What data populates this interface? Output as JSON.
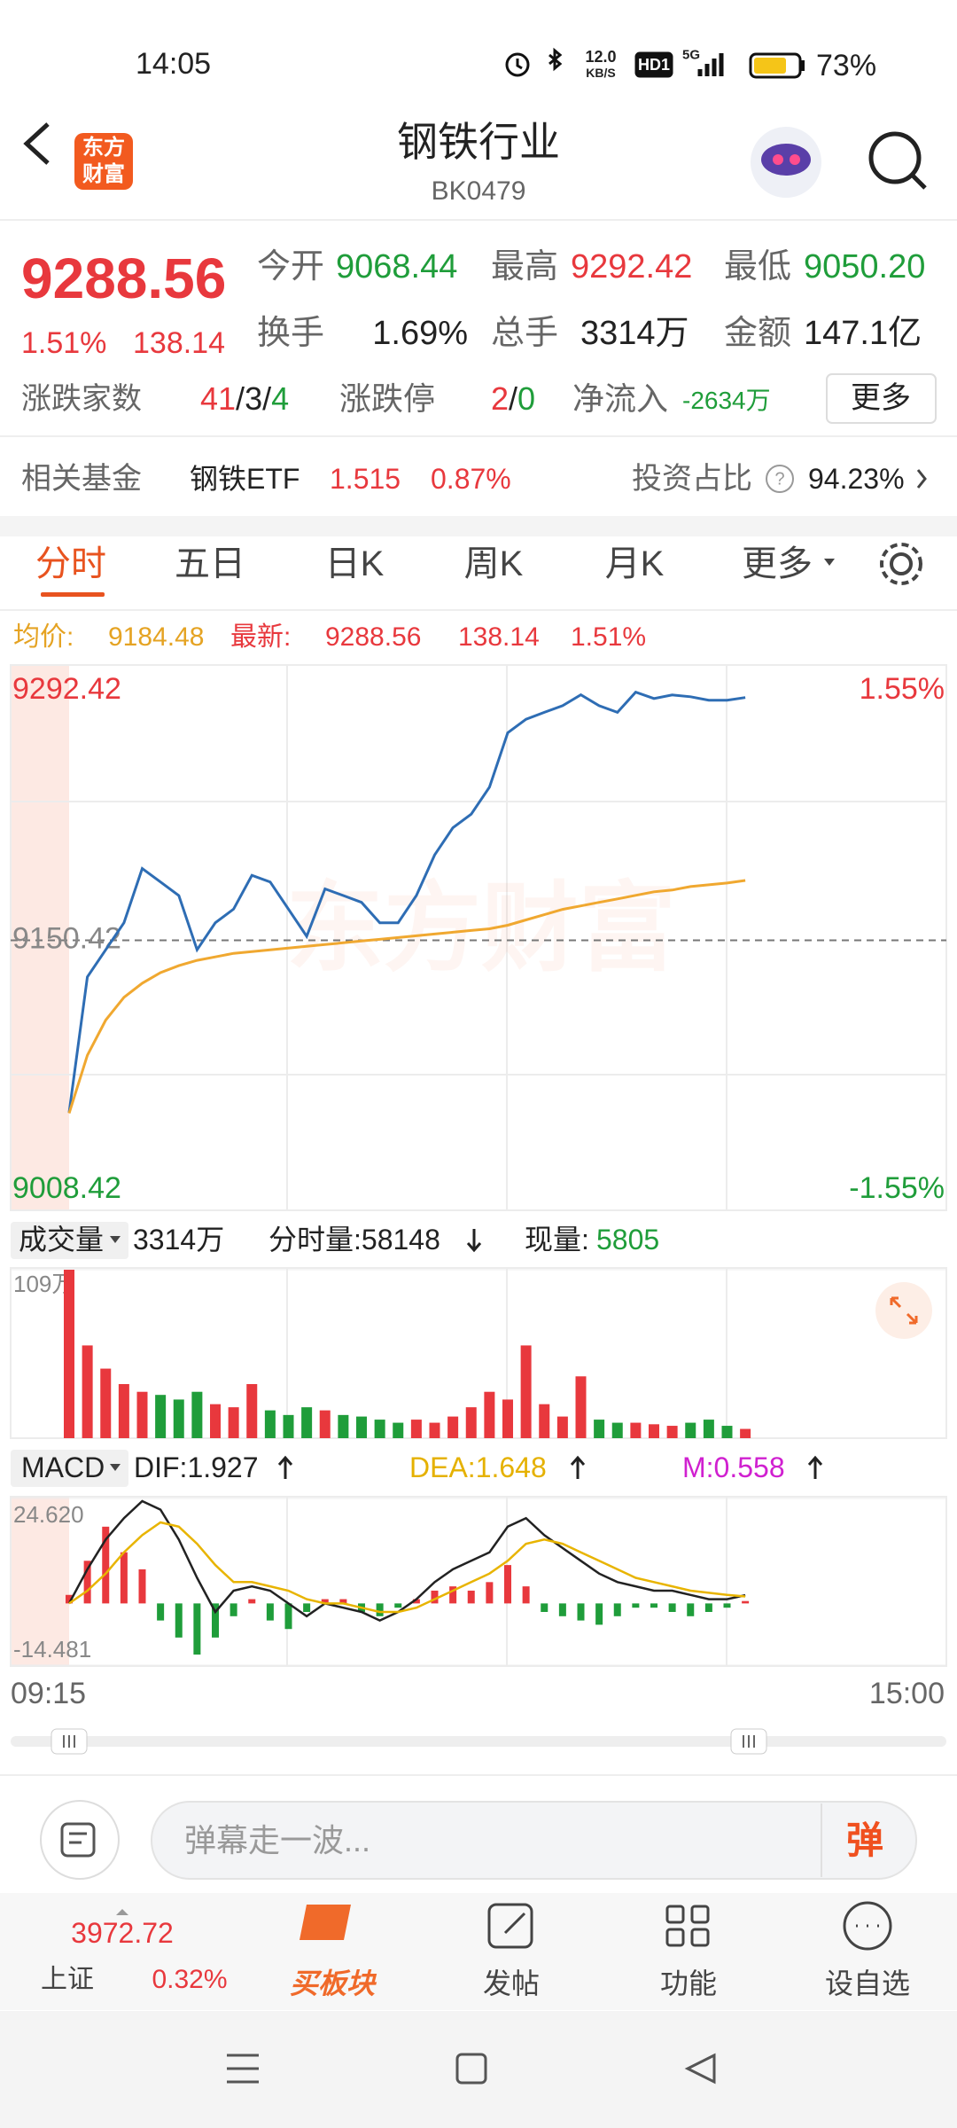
{
  "status_bar": {
    "time": "14:05",
    "net_speed": "12.0",
    "net_unit": "KB/S",
    "hd": "HD1",
    "signal": "5G",
    "battery": "73%"
  },
  "header": {
    "logo_line1": "东方",
    "logo_line2": "财富",
    "title": "钢铁行业",
    "code": "BK0479"
  },
  "quote": {
    "price": "9288.56",
    "change_pct": "1.51%",
    "change": "138.14",
    "open_label": "今开",
    "open": "9068.44",
    "high_label": "最高",
    "high": "9292.42",
    "low_label": "最低",
    "low": "9050.20",
    "turnover_label": "换手",
    "turnover": "1.69%",
    "hands_label": "总手",
    "hands": "3314万",
    "amount_label": "金额",
    "amount": "147.1亿",
    "breadth_label": "涨跌家数",
    "breadth": [
      "41",
      "/",
      "3",
      "/",
      "4"
    ],
    "limit_label": "涨跌停",
    "limit": [
      "2",
      "/",
      "0"
    ],
    "inflow_label": "净流入",
    "inflow": "-2634万",
    "more": "更多"
  },
  "fund": {
    "label": "相关基金",
    "name": "钢铁ETF",
    "price": "1.515",
    "change": "0.87%",
    "ratio_label": "投资占比",
    "ratio": "94.23%"
  },
  "tabs": [
    "分时",
    "五日",
    "日K",
    "周K",
    "月K",
    "更多"
  ],
  "chart_data": [
    {
      "type": "line",
      "avg_label": "均价:",
      "avg": "9184.48",
      "latest_label": "最新:",
      "latest": "9288.56",
      "latest_change": "138.14",
      "latest_change_pct": "1.51%",
      "watermark": "东方财富",
      "ylim": [
        9008.42,
        9292.42
      ],
      "yticks": [
        9292.42,
        9150.42,
        9008.42
      ],
      "ytick_colors": [
        "#e8383d",
        "#888888",
        "#1f9d3a"
      ],
      "ytick_lines": [
        "none",
        "dashed",
        "none"
      ],
      "y2lim": [
        -1.55,
        1.55
      ],
      "y2ticks": [
        {
          "value": 1.55,
          "label": "1.55%"
        },
        {
          "value": -1.55,
          "label": "-1.55%"
        }
      ],
      "y2tick_colors": [
        "#e8383d",
        "#1f9d3a"
      ],
      "series": [
        {
          "color": "#2e6db4",
          "values": [
            9052.4,
            9129.6,
            9145,
            9160.4,
            9191.3,
            9183.6,
            9175.9,
            9145,
            9160.4,
            9168.2,
            9187.4,
            9183.6,
            9168.2,
            9152.7,
            9179.7,
            9175.9,
            9172,
            9160.4,
            9160.4,
            9175.9,
            9199,
            9214.5,
            9222.2,
            9237.6,
            9268.5,
            9276.2,
            9280.1,
            9283.9,
            9290.1,
            9283.9,
            9280.1,
            9291.6,
            9288,
            9290,
            9289,
            9287,
            9287,
            9288.56,
            null,
            null,
            null,
            null,
            null,
            null,
            null,
            null,
            null,
            null,
            null
          ]
        },
        {
          "color": "#f0a830",
          "values": [
            9052,
            9085,
            9105,
            9118,
            9126,
            9132,
            9136,
            9139,
            9141,
            9143,
            9144,
            9145,
            9146,
            9147,
            9148,
            9149,
            9150,
            9151,
            9152,
            9153,
            9154,
            9155,
            9156,
            9157,
            9159,
            9162,
            9165,
            9168,
            9170,
            9172,
            9174,
            9176,
            9178,
            9179,
            9181,
            9182,
            9183,
            9184.48,
            null,
            null,
            null,
            null,
            null,
            null,
            null,
            null,
            null,
            null,
            null
          ]
        }
      ]
    },
    {
      "type": "bar",
      "selector": "成交量",
      "total": "3314万",
      "period_volume": "分时量:58148",
      "current_label": "现量:",
      "current": "5805",
      "ylim": [
        0,
        109
      ],
      "yticks": [
        {
          "value": 109,
          "label": "109万"
        }
      ],
      "values": [
        109,
        60,
        45,
        35,
        30,
        28,
        25,
        30,
        22,
        20,
        35,
        18,
        15,
        20,
        18,
        15,
        14,
        12,
        10,
        12,
        10,
        14,
        20,
        30,
        25,
        60,
        22,
        14,
        40,
        12,
        10,
        10,
        9,
        8,
        10,
        12,
        8,
        6,
        null,
        null,
        null,
        null,
        null,
        null,
        null,
        null,
        null,
        null,
        null
      ],
      "colors": [
        "#e8383d",
        "#e8383d",
        "#e8383d",
        "#e8383d",
        "#e8383d",
        "#1f9d3a",
        "#1f9d3a",
        "#1f9d3a",
        "#e8383d",
        "#e8383d",
        "#e8383d",
        "#1f9d3a",
        "#1f9d3a",
        "#1f9d3a",
        "#e8383d",
        "#1f9d3a",
        "#1f9d3a",
        "#1f9d3a",
        "#1f9d3a",
        "#e8383d",
        "#e8383d",
        "#e8383d",
        "#e8383d",
        "#e8383d",
        "#e8383d",
        "#e8383d",
        "#e8383d",
        "#e8383d",
        "#e8383d",
        "#1f9d3a",
        "#1f9d3a",
        "#e8383d",
        "#e8383d",
        "#e8383d",
        "#1f9d3a",
        "#1f9d3a",
        "#1f9d3a",
        "#e8383d",
        null,
        null,
        null,
        null,
        null,
        null,
        null,
        null,
        null,
        null,
        null
      ]
    },
    {
      "type": "macd",
      "selector": "MACD",
      "dif_label": "DIF:1.927",
      "dea_label": "DEA:1.648",
      "m_label": "M:0.558",
      "ylim": [
        -14.481,
        24.62
      ],
      "yticks": [
        {
          "value": 24.62,
          "label": "24.620"
        },
        -14.481
      ],
      "x_labels": [
        "09:15",
        "15:00"
      ],
      "histogram": [
        2,
        10,
        18,
        12,
        8,
        -4,
        -8,
        -12,
        -8,
        -3,
        1,
        -4,
        -6,
        -2,
        1,
        1,
        -2,
        -3,
        -1,
        1,
        3,
        4,
        3,
        5,
        9,
        4,
        -2,
        -3,
        -4,
        -5,
        -3,
        -1,
        -1,
        -2,
        -3,
        -2,
        -1,
        0.558,
        null,
        null,
        null,
        null,
        null,
        null,
        null,
        null,
        null,
        null,
        null
      ],
      "up_color": "#e8383d",
      "down_color": "#1f9d3a",
      "series": [
        {
          "color": "#222222",
          "values": [
            0,
            8,
            15,
            20,
            24,
            22,
            15,
            6,
            -2,
            3,
            4,
            3,
            0,
            -3,
            0,
            -1,
            -2,
            -4,
            -2,
            1,
            5,
            8,
            10,
            12,
            18,
            20,
            16,
            13,
            10,
            7,
            5,
            4,
            3,
            3,
            2,
            1,
            1,
            1.927,
            null,
            null,
            null,
            null,
            null,
            null,
            null,
            null,
            null,
            null,
            null
          ]
        },
        {
          "color": "#e8b400",
          "values": [
            0,
            3,
            7,
            12,
            16,
            19,
            18,
            14,
            9,
            5,
            5,
            4,
            3,
            1,
            0,
            0,
            -1,
            -2,
            -2,
            -1,
            1,
            3,
            5,
            7,
            10,
            14,
            15,
            14,
            12,
            10,
            8,
            6,
            5,
            4,
            3,
            2.5,
            2,
            1.648,
            null,
            null,
            null,
            null,
            null,
            null,
            null,
            null,
            null,
            null,
            null
          ]
        }
      ]
    }
  ],
  "comment_bar": {
    "placeholder": "弹幕走一波...",
    "button": "弹"
  },
  "bottom_nav": {
    "index_value": "3972.72",
    "index_name": "上证",
    "index_change": "0.32%",
    "buy": "买板块",
    "post": "发帖",
    "functions": "功能",
    "watchlist": "设自选"
  }
}
